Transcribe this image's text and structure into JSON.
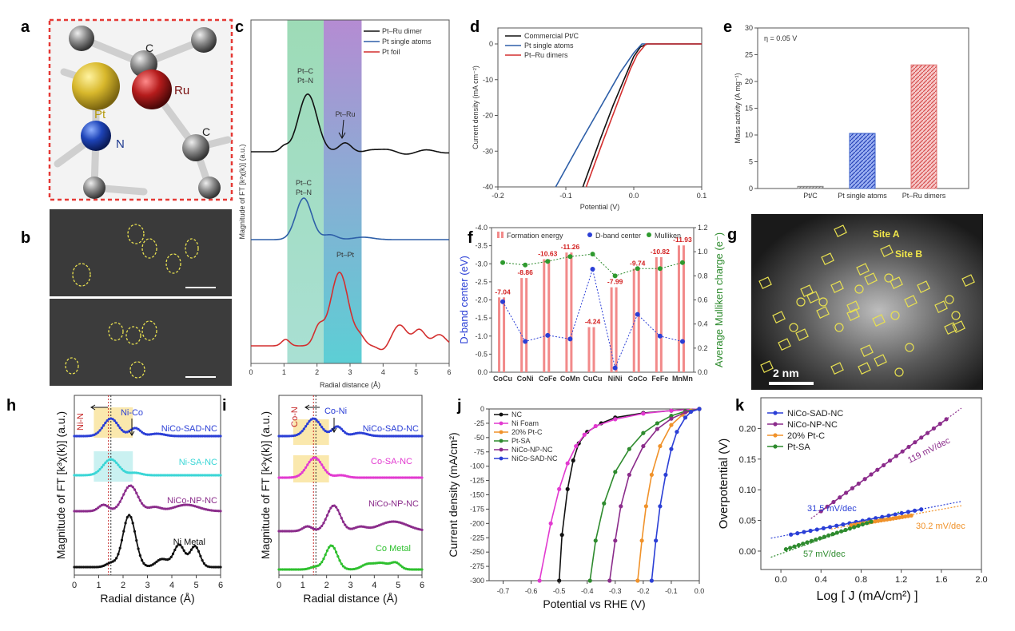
{
  "panels": {
    "a": {
      "label": "a",
      "atoms": {
        "pt": "Pt",
        "ru": "Ru",
        "n": "N",
        "c1": "C",
        "c2": "C"
      }
    },
    "b": {
      "label": "b"
    },
    "c": {
      "label": "c"
    },
    "d": {
      "label": "d"
    },
    "e": {
      "label": "e"
    },
    "f": {
      "label": "f"
    },
    "g": {
      "label": "g",
      "site_a": "Site A",
      "site_b": "Site B",
      "scale": "2 nm"
    },
    "h": {
      "label": "h"
    },
    "i": {
      "label": "i"
    },
    "j": {
      "label": "j"
    },
    "k": {
      "label": "k"
    }
  },
  "chart_data": [
    {
      "id": "c",
      "type": "line",
      "xlabel": "Radial distance (Å)",
      "ylabel": "Magnitude of FT [k²χ(k)] (a.u.)",
      "xlim": [
        0,
        6
      ],
      "xticks": [
        0,
        1,
        2,
        3,
        4,
        5,
        6
      ],
      "legend": [
        "Pt–Ru dimer",
        "Pt single atoms",
        "Pt foil"
      ],
      "colors": [
        "#111111",
        "#2e5fa8",
        "#d32f2f"
      ],
      "annotations": {
        "ptc1": "Pt–C",
        "ptn1": "Pt–N",
        "ptru": "Pt–Ru",
        "ptc2": "Pt–C",
        "ptn2": "Pt–N",
        "ptpt": "Pt–Pt"
      },
      "bands": [
        {
          "x": [
            1.1,
            2.2
          ],
          "color": "#8fd1a8"
        },
        {
          "x": [
            2.2,
            3.35
          ],
          "color": "#a67bc6"
        }
      ]
    },
    {
      "id": "d",
      "type": "line",
      "xlabel": "Potential (V)",
      "ylabel": "Current density (mA cm⁻²)",
      "xlim": [
        -0.2,
        0.1
      ],
      "ylim": [
        -40,
        0
      ],
      "xticks": [
        "-0.2",
        "-0.1",
        "0.0",
        "0.1"
      ],
      "yticks": [
        "0",
        "-10",
        "-20",
        "-30",
        "-40"
      ],
      "series": [
        {
          "name": "Commercial Pt/C",
          "color": "#111111",
          "x": [
            -0.075,
            -0.05,
            -0.03,
            -0.01,
            0.0,
            0.01,
            0.02,
            0.1
          ],
          "y": [
            -40,
            -27,
            -17,
            -8,
            -3.5,
            -0.8,
            0,
            0
          ]
        },
        {
          "name": "Pt single atoms",
          "color": "#2e5fa8",
          "x": [
            -0.115,
            -0.08,
            -0.05,
            -0.02,
            0.0,
            0.012,
            0.1
          ],
          "y": [
            -40,
            -28,
            -18,
            -8,
            -2.5,
            0,
            0
          ]
        },
        {
          "name": "Pt–Ru dimers",
          "color": "#d32f2f",
          "x": [
            -0.07,
            -0.045,
            -0.025,
            -0.005,
            0.005,
            0.018,
            0.1
          ],
          "y": [
            -40,
            -27,
            -17,
            -7,
            -3,
            0,
            0
          ]
        }
      ]
    },
    {
      "id": "e",
      "type": "bar",
      "ylabel": "Mass activity (A mg⁻¹)",
      "note": "η = 0.05 V",
      "categories": [
        "Pt/C",
        "Pt single atoms",
        "Pt–Ru dimers"
      ],
      "values": [
        0.4,
        10.3,
        23.1
      ],
      "colors": [
        "#888888",
        "#3a5fc8",
        "#e07070"
      ],
      "ylim": [
        0,
        30
      ],
      "yticks": [
        "0",
        "5",
        "10",
        "15",
        "20",
        "25",
        "30"
      ]
    },
    {
      "id": "f",
      "type": "bar",
      "categories": [
        "CoCu",
        "CoNi",
        "CoFe",
        "CoMn",
        "CuCu",
        "NiNi",
        "CoCo",
        "FeFe",
        "MnMn"
      ],
      "formation_energy": [
        -7.04,
        -8.86,
        -10.63,
        -11.26,
        -4.24,
        -7.99,
        -9.74,
        -10.82,
        -11.93
      ],
      "formation_labels": [
        "-7.04",
        "-8.86",
        "-10.63",
        "-11.26",
        "-4.24",
        "-7.99",
        "-9.74",
        "-10.82",
        "-11.93"
      ],
      "dband": [
        -1.95,
        -0.85,
        -1.02,
        -0.92,
        -2.85,
        -0.12,
        -1.6,
        -1.0,
        -0.85
      ],
      "mulliken": [
        0.91,
        0.89,
        0.92,
        0.96,
        0.98,
        0.8,
        0.86,
        0.86,
        0.91
      ],
      "legend": [
        "Formation energy",
        "D-band center",
        "Mulliken"
      ],
      "ylabel_left": "D-band center (eV)",
      "ylabel_right": "Average Mulliken charge (e⁻)",
      "yticks_left": [
        "-4.0",
        "-3.5",
        "-3.0",
        "-2.5",
        "-2.0",
        "-1.5",
        "-1.0",
        "-0.5",
        "0.0"
      ],
      "yticks_right": [
        "0.0",
        "0.2",
        "0.4",
        "0.6",
        "0.8",
        "1.0",
        "1.2"
      ]
    },
    {
      "id": "h",
      "type": "line",
      "xlabel": "Radial distance (Å)",
      "ylabel": "Magnitude of FT [k³χ(k)] (a.u.)",
      "xlim": [
        0,
        6
      ],
      "xticks": [
        "0",
        "1",
        "2",
        "3",
        "4",
        "5",
        "6"
      ],
      "series_names": [
        "NiCo-SAD-NC",
        "Ni-SA-NC",
        "NiCo-NP-NC",
        "Ni Metal"
      ],
      "colors": [
        "#2b3fd6",
        "#3ad6d6",
        "#8b2c8b",
        "#111111"
      ],
      "annotations": {
        "left": "Ni-N",
        "right": "Ni-Co"
      }
    },
    {
      "id": "i",
      "type": "line",
      "xlabel": "Radial distance (Å)",
      "ylabel": "Magnitude of FT [k³χ(k)] (a.u.)",
      "xlim": [
        0,
        6
      ],
      "xticks": [
        "0",
        "1",
        "2",
        "3",
        "4",
        "5",
        "6"
      ],
      "series_names": [
        "NiCo-SAD-NC",
        "Co-SA-NC",
        "NiCo-NP-NC",
        "Co Metal"
      ],
      "colors": [
        "#2b3fd6",
        "#e23ad0",
        "#8b2c8b",
        "#2ec02e"
      ],
      "annotations": {
        "left": "Co-N",
        "right": "Co-Ni"
      }
    },
    {
      "id": "j",
      "type": "line",
      "xlabel": "Potential vs RHE (V)",
      "ylabel": "Current density (mA/cm²)",
      "xlim": [
        -0.75,
        0.0
      ],
      "ylim": [
        -300,
        0
      ],
      "xticks": [
        "-0.7",
        "-0.6",
        "-0.5",
        "-0.4",
        "-0.3",
        "-0.2",
        "-0.1",
        "0.0"
      ],
      "yticks": [
        "0",
        "-25",
        "-50",
        "-75",
        "-100",
        "-125",
        "-150",
        "-175",
        "-200",
        "-225",
        "-250",
        "-275",
        "-300"
      ],
      "series": [
        {
          "name": "NC",
          "color": "#111111",
          "x": [
            -0.5,
            -0.49,
            -0.47,
            -0.45,
            -0.43,
            -0.4,
            -0.35,
            -0.3,
            -0.2,
            -0.1,
            0.0
          ],
          "y": [
            -300,
            -220,
            -140,
            -90,
            -60,
            -40,
            -25,
            -15,
            -7,
            -3,
            0
          ]
        },
        {
          "name": "Ni Foam",
          "color": "#e23ad0",
          "x": [
            -0.57,
            -0.53,
            -0.5,
            -0.47,
            -0.44,
            -0.41,
            -0.37,
            -0.3,
            -0.2,
            -0.1,
            0.0
          ],
          "y": [
            -300,
            -200,
            -140,
            -95,
            -65,
            -45,
            -30,
            -18,
            -8,
            -3,
            0
          ]
        },
        {
          "name": "20% Pt-C",
          "color": "#f0922a",
          "x": [
            -0.22,
            -0.205,
            -0.19,
            -0.17,
            -0.14,
            -0.1,
            -0.06,
            -0.03,
            0.0
          ],
          "y": [
            -300,
            -230,
            -170,
            -115,
            -65,
            -28,
            -10,
            -3,
            0
          ]
        },
        {
          "name": "Pt-SA",
          "color": "#2e8b2e",
          "x": [
            -0.39,
            -0.37,
            -0.34,
            -0.3,
            -0.25,
            -0.2,
            -0.15,
            -0.1,
            -0.05,
            0.0
          ],
          "y": [
            -300,
            -230,
            -165,
            -110,
            -70,
            -42,
            -25,
            -12,
            -4,
            0
          ]
        },
        {
          "name": "NiCo-NP-NC",
          "color": "#8b2c8b",
          "x": [
            -0.32,
            -0.3,
            -0.28,
            -0.25,
            -0.2,
            -0.15,
            -0.1,
            -0.05,
            0.0
          ],
          "y": [
            -300,
            -230,
            -170,
            -115,
            -65,
            -35,
            -17,
            -6,
            0
          ]
        },
        {
          "name": "NiCo-SAD-NC",
          "color": "#2b3fd6",
          "x": [
            -0.17,
            -0.155,
            -0.14,
            -0.12,
            -0.1,
            -0.08,
            -0.05,
            -0.03,
            0.0
          ],
          "y": [
            -300,
            -230,
            -170,
            -115,
            -70,
            -40,
            -15,
            -5,
            0
          ]
        }
      ]
    },
    {
      "id": "k",
      "type": "line",
      "xlabel": "Log [ J (mA/cm²) ]",
      "ylabel": "Overpotential (V)",
      "xlim": [
        -0.2,
        2.0
      ],
      "ylim": [
        -0.03,
        0.25
      ],
      "xticks": [
        "0.0",
        "0.4",
        "0.8",
        "1.2",
        "1.6",
        "2.0"
      ],
      "yticks": [
        "0.00",
        "0.05",
        "0.10",
        "0.15",
        "0.20"
      ],
      "slopes": [
        "119 mV/dec",
        "31.5 mV/dec",
        "30.2 mV/dec",
        "57 mV/dec"
      ],
      "series": [
        {
          "name": "NiCo-SAD-NC",
          "color": "#2b3fd6",
          "x": [
            0.1,
            1.4
          ],
          "y": [
            0.027,
            0.068
          ]
        },
        {
          "name": "NiCo-NP-NC",
          "color": "#8b2c8b",
          "x": [
            0.4,
            1.65
          ],
          "y": [
            0.065,
            0.215
          ]
        },
        {
          "name": "20% Pt-C",
          "color": "#f0922a",
          "x": [
            0.7,
            1.3
          ],
          "y": [
            0.042,
            0.058
          ]
        },
        {
          "name": "Pt-SA",
          "color": "#2e8b2e",
          "x": [
            0.05,
            0.9
          ],
          "y": [
            0.003,
            0.048
          ]
        }
      ],
      "fits": [
        {
          "color": "#2b3fd6",
          "x": [
            -0.1,
            1.8
          ],
          "y": [
            0.021,
            0.081
          ]
        },
        {
          "color": "#8b2c8b",
          "x": [
            0.3,
            1.8
          ],
          "y": [
            0.053,
            0.233
          ]
        },
        {
          "color": "#f0922a",
          "x": [
            0.5,
            1.8
          ],
          "y": [
            0.036,
            0.074
          ]
        },
        {
          "color": "#2e8b2e",
          "x": [
            -0.1,
            1.2
          ],
          "y": [
            -0.01,
            0.065
          ]
        }
      ]
    }
  ]
}
